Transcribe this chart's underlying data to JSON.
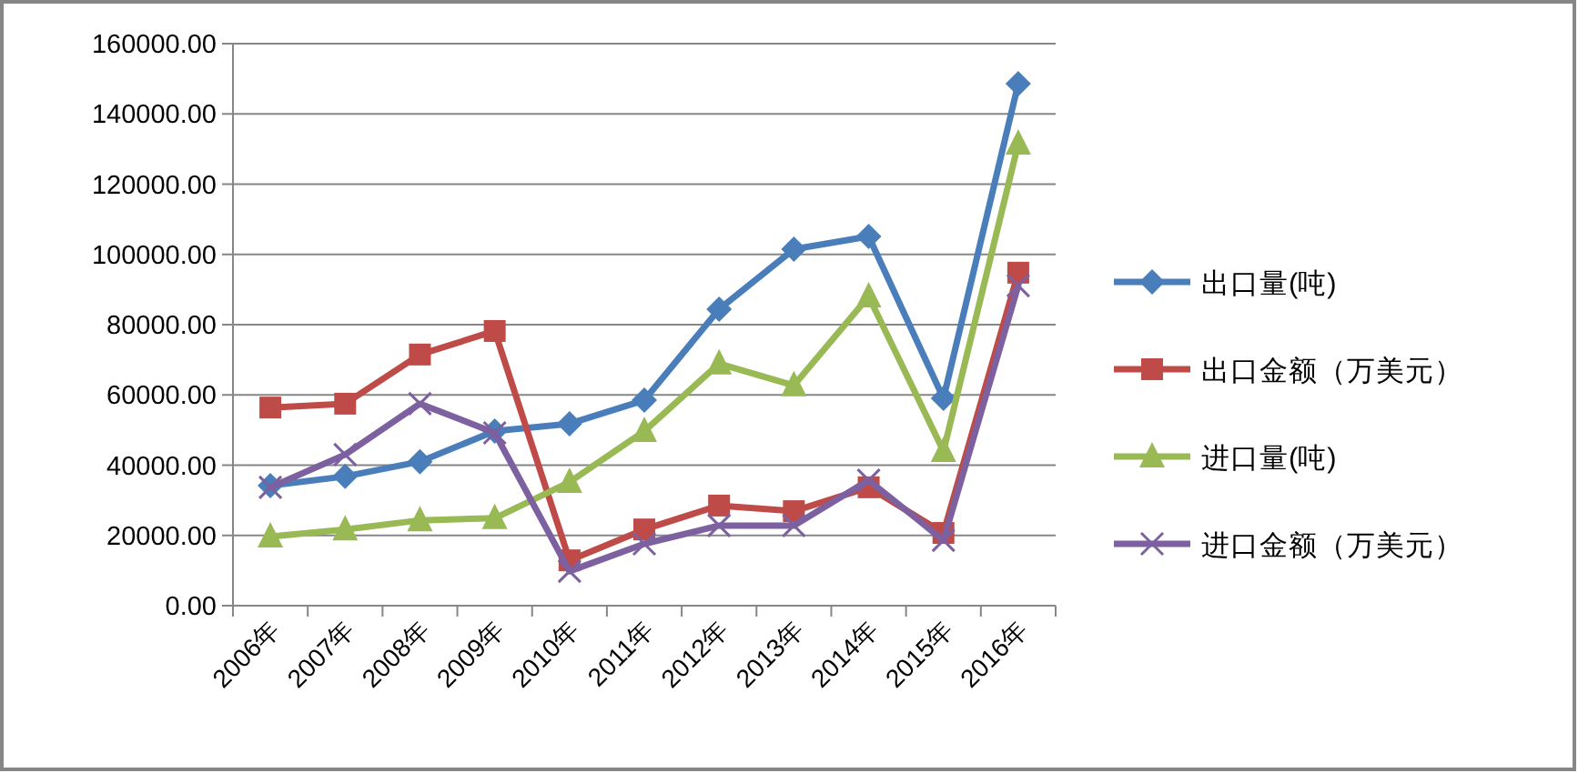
{
  "chart_data": {
    "type": "line",
    "categories": [
      "2006年",
      "2007年",
      "2008年",
      "2009年",
      "2010年",
      "2011年",
      "2012年",
      "2013年",
      "2014年",
      "2015年",
      "2016年"
    ],
    "series": [
      {
        "name": "出口量(吨)",
        "color": "#4a7ebb",
        "marker": "diamond",
        "values": [
          34200,
          36800,
          41000,
          49700,
          51800,
          58500,
          84400,
          101500,
          105100,
          59000,
          148600
        ]
      },
      {
        "name": "出口金额（万美元）",
        "color": "#be4b48",
        "marker": "square",
        "values": [
          56400,
          57500,
          71500,
          78200,
          12900,
          21700,
          28500,
          26900,
          33700,
          20700,
          94800
        ]
      },
      {
        "name": "进口量(吨)",
        "color": "#98b954",
        "marker": "triangle",
        "values": [
          19700,
          21700,
          24300,
          24900,
          35200,
          49700,
          68900,
          62700,
          88000,
          44000,
          131500
        ]
      },
      {
        "name": "进口金额（万美元）",
        "color": "#7d60a0",
        "marker": "cross",
        "values": [
          33700,
          43000,
          57500,
          49200,
          9800,
          17600,
          22800,
          22800,
          35700,
          18600,
          91100
        ]
      }
    ],
    "ylim": [
      0,
      160000
    ],
    "yticks": [
      {
        "value": 0,
        "label": "0.00"
      },
      {
        "value": 20000,
        "label": "20000.00"
      },
      {
        "value": 40000,
        "label": "40000.00"
      },
      {
        "value": 60000,
        "label": "60000.00"
      },
      {
        "value": 80000,
        "label": "80000.00"
      },
      {
        "value": 100000,
        "label": "100000.00"
      },
      {
        "value": 120000,
        "label": "120000.00"
      },
      {
        "value": 140000,
        "label": "140000.00"
      },
      {
        "value": 160000,
        "label": "160000.00"
      }
    ],
    "grid": "y",
    "legend": "right",
    "line_style": "solid"
  }
}
